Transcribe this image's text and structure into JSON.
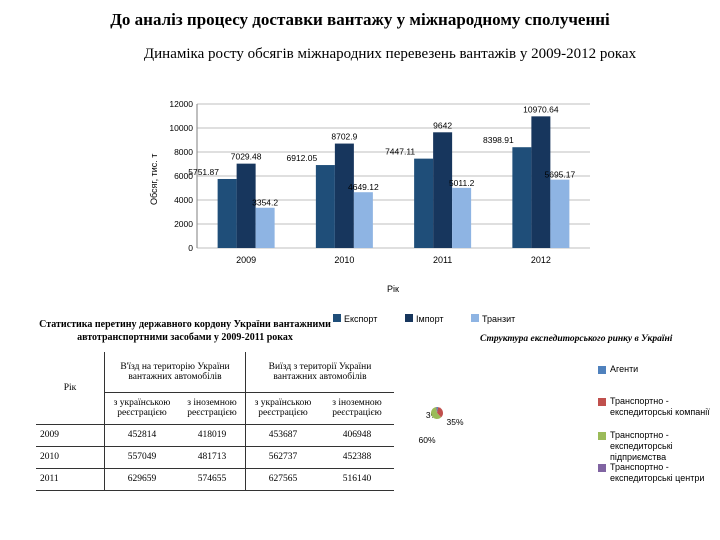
{
  "page": {
    "title": "До аналіз процесу доставки вантажу у міжнародному сполученні"
  },
  "chart_data": [
    {
      "type": "bar",
      "title": "Динаміка росту обсягів міжнародних перевезень вантажів у 2009-2012 роках",
      "xlabel": "Рік",
      "ylabel": "Обсяг, тис. т",
      "ylim": [
        0,
        12000
      ],
      "yticks": [
        "0",
        "2000",
        "4000",
        "6000",
        "8000",
        "10000",
        "12000"
      ],
      "grid": true,
      "legend_position": "bottom",
      "categories": [
        "2009",
        "2010",
        "2011",
        "2012"
      ],
      "series": [
        {
          "name": "Експорт",
          "color": "#1f4e79",
          "values": [
            5751.87,
            6912.05,
            7447.11,
            8398.91
          ],
          "labels": [
            "5751.87",
            "6912.05",
            "7447.11",
            "8398.91"
          ]
        },
        {
          "name": "Імпорт",
          "color": "#17365d",
          "values": [
            7029.48,
            8702.9,
            9642,
            10970.64
          ],
          "labels": [
            "7029.48",
            "8702.9",
            "9642",
            "10970.64"
          ]
        },
        {
          "name": "Транзит",
          "color": "#8eb4e3",
          "values": [
            3354.2,
            4649.12,
            5011.2,
            5695.17
          ],
          "labels": [
            "3354.2",
            "4649.12",
            "5011.2",
            "5695.17"
          ]
        }
      ]
    },
    {
      "type": "pie",
      "title": "Структура експедиторського ринку в Україні",
      "legend_position": "right",
      "slices": [
        {
          "name": "Агенти",
          "value": 3,
          "label": "3%",
          "color": "#4f81bd"
        },
        {
          "name": "Транспортно - експедиторські компанії",
          "value": 35,
          "label": "35%",
          "color": "#c0504d"
        },
        {
          "name": "Транспортно - експедиторські підприємства",
          "value": 60,
          "label": "60%",
          "color": "#9bbb59"
        },
        {
          "name": "Транспортно - експедиторські центри",
          "value": 2,
          "label": "",
          "color": "#8064a2"
        }
      ]
    }
  ],
  "stats_table": {
    "title": "Статистика перетину державного кордону України вантажними автотранспортними засобами у 2009-2011 роках",
    "col_year": "Рік",
    "col_entry": "В'їзд на територію України вантажних автомобілів",
    "col_exit": "Виїзд з території України вантажних автомобілів",
    "sub_ua": "з українською реєстрацією",
    "sub_foreign": "з іноземною реєстрацією",
    "rows": [
      {
        "year": "2009",
        "entry_ua": "452814",
        "entry_foreign": "418019",
        "exit_ua": "453687",
        "exit_foreign": "406948"
      },
      {
        "year": "2010",
        "entry_ua": "557049",
        "entry_foreign": "481713",
        "exit_ua": "562737",
        "exit_foreign": "452388"
      },
      {
        "year": "2011",
        "entry_ua": "629659",
        "entry_foreign": "574655",
        "exit_ua": "627565",
        "exit_foreign": "516140"
      }
    ]
  }
}
